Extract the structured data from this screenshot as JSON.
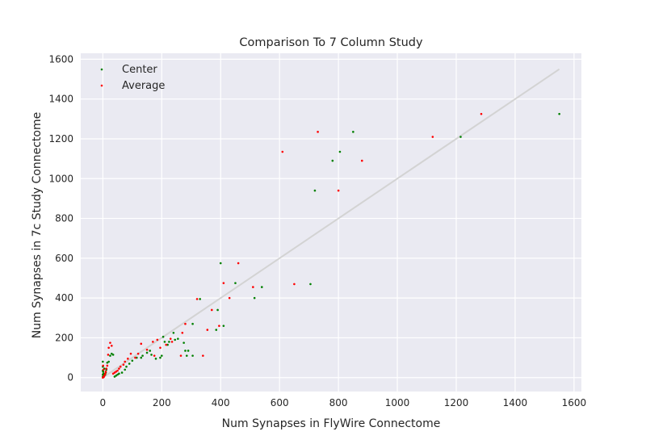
{
  "chart_data": {
    "type": "scatter",
    "title": "Comparison To 7 Column Study",
    "xlabel": "Num Synapses in FlyWire Connectome",
    "ylabel": "Num Synapses in 7c Study Connectome",
    "xlim": [
      -75,
      1625
    ],
    "ylim": [
      -70,
      1630
    ],
    "xticks": [
      0,
      200,
      400,
      600,
      800,
      1000,
      1200,
      1400,
      1600
    ],
    "yticks": [
      0,
      200,
      400,
      600,
      800,
      1000,
      1200,
      1400,
      1600
    ],
    "grid": true,
    "legend_position": "top-left",
    "reference_line": {
      "x": [
        0,
        1550
      ],
      "y": [
        0,
        1550
      ],
      "color": "#d3d3d3"
    },
    "series": [
      {
        "name": "Center",
        "color": "#008000",
        "points": [
          [
            1550,
            1325
          ],
          [
            1215,
            1210
          ],
          [
            850,
            1235
          ],
          [
            805,
            1135
          ],
          [
            780,
            1090
          ],
          [
            720,
            940
          ],
          [
            705,
            470
          ],
          [
            540,
            455
          ],
          [
            515,
            400
          ],
          [
            450,
            475
          ],
          [
            400,
            575
          ],
          [
            410,
            260
          ],
          [
            390,
            340
          ],
          [
            385,
            240
          ],
          [
            330,
            395
          ],
          [
            305,
            270
          ],
          [
            305,
            110
          ],
          [
            290,
            135
          ],
          [
            280,
            135
          ],
          [
            275,
            175
          ],
          [
            285,
            110
          ],
          [
            255,
            195
          ],
          [
            245,
            190
          ],
          [
            240,
            225
          ],
          [
            225,
            180
          ],
          [
            220,
            165
          ],
          [
            210,
            180
          ],
          [
            205,
            205
          ],
          [
            200,
            110
          ],
          [
            195,
            100
          ],
          [
            180,
            95
          ],
          [
            165,
            115
          ],
          [
            160,
            135
          ],
          [
            150,
            125
          ],
          [
            135,
            110
          ],
          [
            130,
            100
          ],
          [
            115,
            100
          ],
          [
            100,
            85
          ],
          [
            90,
            70
          ],
          [
            80,
            55
          ],
          [
            75,
            40
          ],
          [
            65,
            25
          ],
          [
            55,
            20
          ],
          [
            50,
            15
          ],
          [
            45,
            10
          ],
          [
            40,
            5
          ],
          [
            35,
            115
          ],
          [
            30,
            120
          ],
          [
            25,
            110
          ],
          [
            20,
            80
          ],
          [
            15,
            75
          ],
          [
            12,
            40
          ],
          [
            10,
            25
          ],
          [
            8,
            15
          ],
          [
            5,
            45
          ],
          [
            5,
            10
          ],
          [
            3,
            5
          ],
          [
            2,
            20
          ],
          [
            1,
            30
          ],
          [
            0,
            80
          ],
          [
            0,
            55
          ],
          [
            0,
            35
          ],
          [
            0,
            15
          ],
          [
            0,
            5
          ]
        ]
      },
      {
        "name": "Average",
        "color": "#ff0000",
        "points": [
          [
            1285,
            1325
          ],
          [
            1120,
            1210
          ],
          [
            880,
            1090
          ],
          [
            800,
            940
          ],
          [
            730,
            1235
          ],
          [
            610,
            1135
          ],
          [
            650,
            470
          ],
          [
            510,
            455
          ],
          [
            460,
            575
          ],
          [
            430,
            400
          ],
          [
            410,
            475
          ],
          [
            395,
            260
          ],
          [
            370,
            340
          ],
          [
            355,
            240
          ],
          [
            340,
            110
          ],
          [
            320,
            395
          ],
          [
            280,
            270
          ],
          [
            270,
            225
          ],
          [
            265,
            110
          ],
          [
            235,
            180
          ],
          [
            230,
            195
          ],
          [
            215,
            165
          ],
          [
            195,
            150
          ],
          [
            185,
            190
          ],
          [
            175,
            110
          ],
          [
            170,
            180
          ],
          [
            150,
            140
          ],
          [
            130,
            170
          ],
          [
            120,
            120
          ],
          [
            110,
            100
          ],
          [
            95,
            120
          ],
          [
            85,
            95
          ],
          [
            75,
            80
          ],
          [
            70,
            65
          ],
          [
            60,
            55
          ],
          [
            55,
            45
          ],
          [
            50,
            35
          ],
          [
            45,
            30
          ],
          [
            40,
            25
          ],
          [
            35,
            20
          ],
          [
            30,
            160
          ],
          [
            25,
            175
          ],
          [
            20,
            150
          ],
          [
            18,
            115
          ],
          [
            15,
            60
          ],
          [
            12,
            45
          ],
          [
            10,
            30
          ],
          [
            8,
            20
          ],
          [
            6,
            12
          ],
          [
            4,
            8
          ],
          [
            3,
            3
          ],
          [
            2,
            40
          ],
          [
            1,
            60
          ],
          [
            0,
            0
          ]
        ]
      }
    ]
  }
}
